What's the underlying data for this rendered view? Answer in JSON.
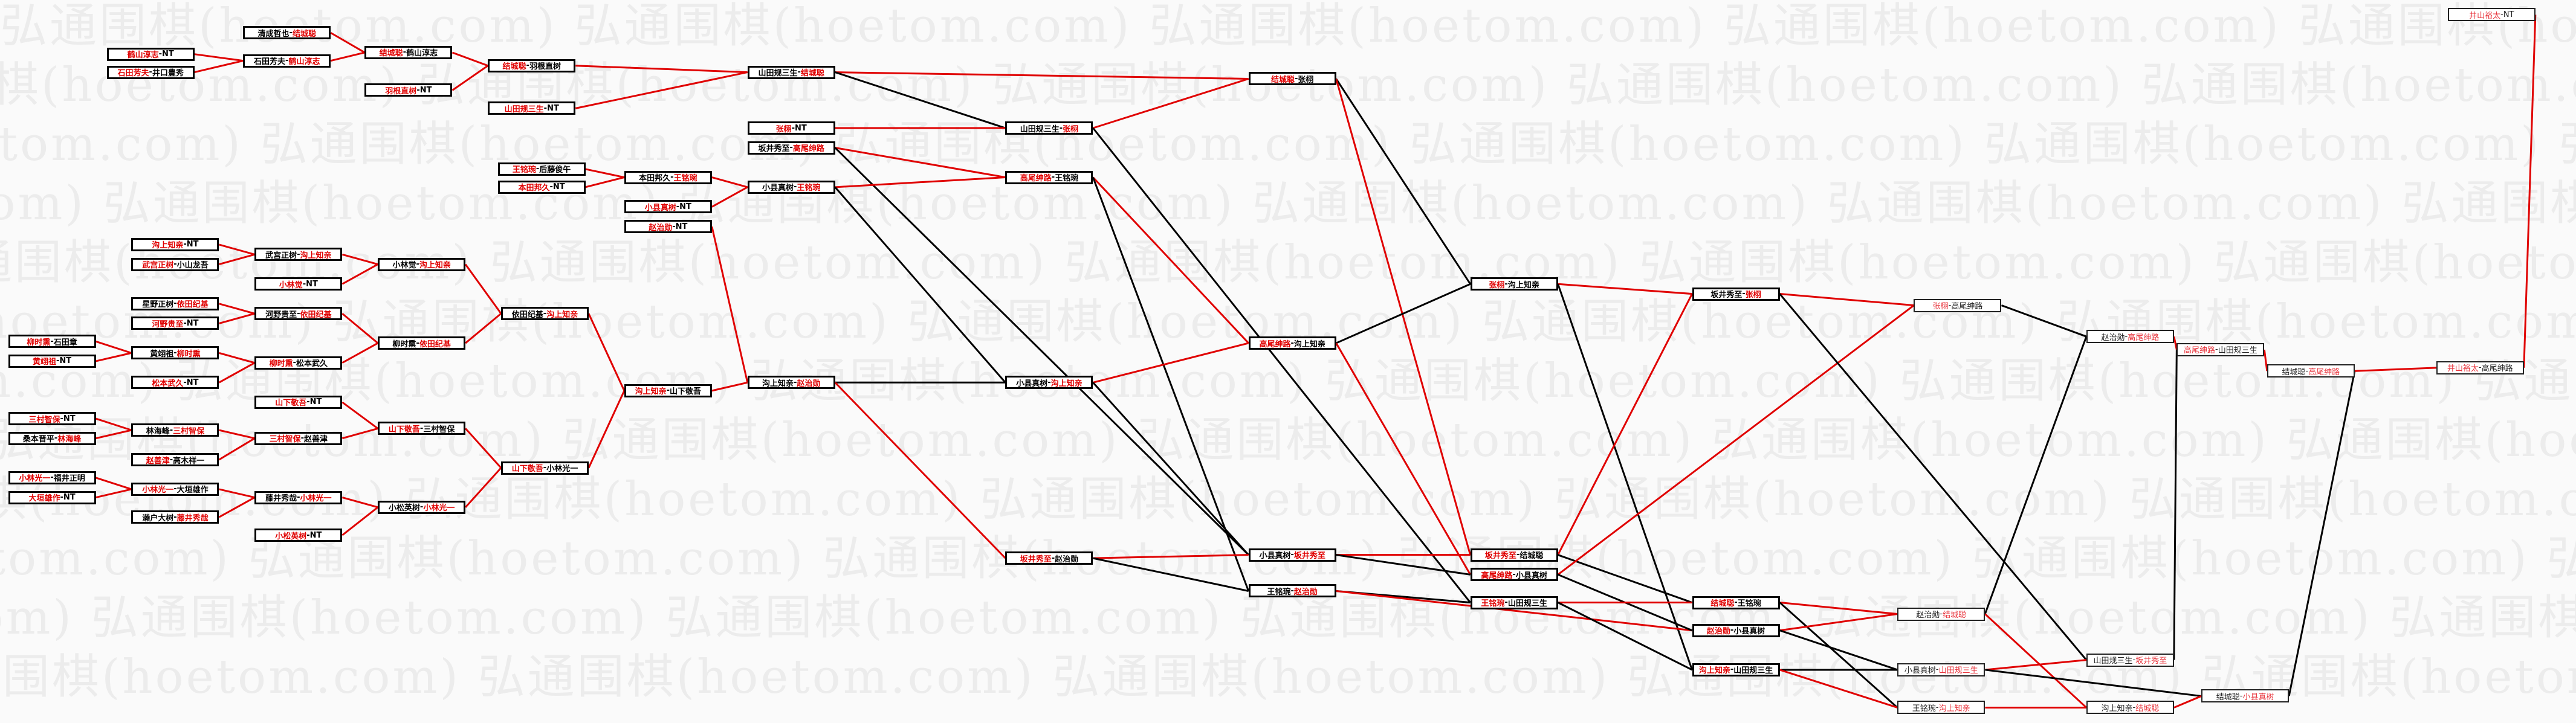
{
  "watermark": "弘通围棋(hoetom.com)",
  "colors": {
    "win": "#e00000",
    "lose": "#000000",
    "box_border": "#000000",
    "background": "#fafafa"
  },
  "matches": [
    {
      "id": "a1",
      "l": "鹤山淳志",
      "r": "NT",
      "red": "l"
    },
    {
      "id": "a2",
      "l": "石田芳夫",
      "r": "井口豊秀",
      "red": "l"
    },
    {
      "id": "a3",
      "l": "清成哲也",
      "r": "结城聪",
      "red": "r"
    },
    {
      "id": "a4",
      "l": "石田芳夫",
      "r": "鹤山淳志",
      "red": "r"
    },
    {
      "id": "a5",
      "l": "结城聪",
      "r": "鹤山淳志",
      "red": "l"
    },
    {
      "id": "a6",
      "l": "羽根直树",
      "r": "NT",
      "red": "l"
    },
    {
      "id": "a7",
      "l": "结城聪",
      "r": "羽根直树",
      "red": "l"
    },
    {
      "id": "a8",
      "l": "山田规三生",
      "r": "NT",
      "red": "l"
    },
    {
      "id": "a9",
      "l": "山田规三生",
      "r": "结城聪",
      "red": "r"
    },
    {
      "id": "b1",
      "l": "王铭琬",
      "r": "后藤俊午",
      "red": "l"
    },
    {
      "id": "b2",
      "l": "本田邦久",
      "r": "NT",
      "red": "l"
    },
    {
      "id": "b3",
      "l": "本田邦久",
      "r": "王铭琬",
      "red": "r"
    },
    {
      "id": "b4",
      "l": "小县真树",
      "r": "NT",
      "red": "l"
    },
    {
      "id": "b5",
      "l": "赵治勋",
      "r": "NT",
      "red": "l"
    },
    {
      "id": "b6",
      "l": "张栩",
      "r": "NT",
      "red": "l"
    },
    {
      "id": "b7",
      "l": "坂井秀至",
      "r": "高尾绅路",
      "red": "r"
    },
    {
      "id": "b8",
      "l": "小县真树",
      "r": "王铭琬",
      "red": "r"
    },
    {
      "id": "b9",
      "l": "山田规三生",
      "r": "张栩",
      "red": "r"
    },
    {
      "id": "b10",
      "l": "高尾绅路",
      "r": "王铭琬",
      "red": "l"
    },
    {
      "id": "b11",
      "l": "结城聪",
      "r": "张栩",
      "red": "l"
    },
    {
      "id": "c1",
      "l": "沟上知亲",
      "r": "NT",
      "red": "l"
    },
    {
      "id": "c2",
      "l": "武宫正树",
      "r": "小山龙吾",
      "red": "l"
    },
    {
      "id": "c3",
      "l": "武宫正树",
      "r": "沟上知亲",
      "red": "r"
    },
    {
      "id": "c4",
      "l": "小林觉",
      "r": "NT",
      "red": "l"
    },
    {
      "id": "c5",
      "l": "小林觉",
      "r": "沟上知亲",
      "red": "r"
    },
    {
      "id": "c6",
      "l": "星野正树",
      "r": "依田纪基",
      "red": "r"
    },
    {
      "id": "c7",
      "l": "河野贵至",
      "r": "NT",
      "red": "l"
    },
    {
      "id": "c8",
      "l": "河野贵至",
      "r": "依田纪基",
      "red": "r"
    },
    {
      "id": "c9",
      "l": "柳时熏",
      "r": "依田纪基",
      "red": "r"
    },
    {
      "id": "c10",
      "l": "依田纪基",
      "r": "沟上知亲",
      "red": "r"
    },
    {
      "id": "c11",
      "l": "柳时熏",
      "r": "石田章",
      "red": "l"
    },
    {
      "id": "c12",
      "l": "黄翊祖",
      "r": "NT",
      "red": "l"
    },
    {
      "id": "c13",
      "l": "黄翊祖",
      "r": "柳时熏",
      "red": "r"
    },
    {
      "id": "c14",
      "l": "柳时熏",
      "r": "松本武久",
      "red": "l"
    },
    {
      "id": "c15",
      "l": "松本武久",
      "r": "NT",
      "red": "l"
    },
    {
      "id": "c16",
      "l": "山下敬吾",
      "r": "NT",
      "red": "l"
    },
    {
      "id": "c17",
      "l": "三村智保",
      "r": "NT",
      "red": "l"
    },
    {
      "id": "c18",
      "l": "桑本晋平",
      "r": "林海峰",
      "red": "r"
    },
    {
      "id": "c19",
      "l": "林海峰",
      "r": "三村智保",
      "red": "r"
    },
    {
      "id": "c20",
      "l": "赵善津",
      "r": "高木祥一",
      "red": "l"
    },
    {
      "id": "c21",
      "l": "三村智保",
      "r": "赵善津",
      "red": "l"
    },
    {
      "id": "c22",
      "l": "山下敬吾",
      "r": "三村智保",
      "red": "l"
    },
    {
      "id": "c23",
      "l": "小林光一",
      "r": "福井正明",
      "red": "l"
    },
    {
      "id": "c24",
      "l": "大垣雄作",
      "r": "NT",
      "red": "l"
    },
    {
      "id": "c25",
      "l": "小林光一",
      "r": "大垣雄作",
      "red": "l"
    },
    {
      "id": "c26",
      "l": "濑户大树",
      "r": "藤井秀哉",
      "red": "r"
    },
    {
      "id": "c27",
      "l": "藤井秀哉",
      "r": "小林光一",
      "red": "r"
    },
    {
      "id": "c28",
      "l": "小松英树",
      "r": "NT",
      "red": "l"
    },
    {
      "id": "c29",
      "l": "小松英树",
      "r": "小林光一",
      "red": "r"
    },
    {
      "id": "c30",
      "l": "山下敬吾",
      "r": "小林光一",
      "red": "l"
    },
    {
      "id": "d1",
      "l": "沟上知亲",
      "r": "山下敬吾",
      "red": "l"
    },
    {
      "id": "d2",
      "l": "沟上知亲",
      "r": "赵治勋",
      "red": "r"
    },
    {
      "id": "d3",
      "l": "小县真树",
      "r": "沟上知亲",
      "red": "r"
    },
    {
      "id": "d4",
      "l": "高尾绅路",
      "r": "沟上知亲",
      "red": "l"
    },
    {
      "id": "d5",
      "l": "坂井秀至",
      "r": "赵治勋",
      "red": "l"
    },
    {
      "id": "d6",
      "l": "张栩",
      "r": "沟上知亲",
      "red": "l"
    },
    {
      "id": "d7",
      "l": "坂井秀至",
      "r": "张栩",
      "red": "r"
    },
    {
      "id": "d8",
      "l": "张栩",
      "r": "高尾绅路",
      "red": "l"
    },
    {
      "id": "d9",
      "l": "赵治勋",
      "r": "高尾绅路",
      "red": "r"
    },
    {
      "id": "d10",
      "l": "高尾绅路",
      "r": "山田规三生",
      "red": "l"
    },
    {
      "id": "d11",
      "l": "结城聪",
      "r": "高尾绅路",
      "red": "r"
    },
    {
      "id": "d12",
      "l": "井山裕太",
      "r": "高尾绅路",
      "red": "l"
    },
    {
      "id": "d13",
      "l": "井山裕太",
      "r": "NT",
      "red": "l"
    },
    {
      "id": "e1",
      "l": "小县真树",
      "r": "坂井秀至",
      "red": "r"
    },
    {
      "id": "e2",
      "l": "王铭琬",
      "r": "赵治勋",
      "red": "r"
    },
    {
      "id": "e3",
      "l": "坂井秀至",
      "r": "结城聪",
      "red": "l"
    },
    {
      "id": "e4",
      "l": "高尾绅路",
      "r": "小县真树",
      "red": "l"
    },
    {
      "id": "e5",
      "l": "王铭琬",
      "r": "山田规三生",
      "red": "l"
    },
    {
      "id": "e6",
      "l": "结城聪",
      "r": "王铭琬",
      "red": "l"
    },
    {
      "id": "e7",
      "l": "赵治勋",
      "r": "小县真树",
      "red": "l"
    },
    {
      "id": "e8",
      "l": "沟上知亲",
      "r": "山田规三生",
      "red": "l"
    },
    {
      "id": "e9",
      "l": "赵治勋",
      "r": "结城聪",
      "red": "r"
    },
    {
      "id": "e10",
      "l": "山田规三生",
      "r": "坂井秀至",
      "red": "r"
    },
    {
      "id": "e11",
      "l": "小县真树",
      "r": "山田规三生",
      "red": "r"
    },
    {
      "id": "e12",
      "l": "王铭琬",
      "r": "沟上知亲",
      "red": "r"
    },
    {
      "id": "e13",
      "l": "沟上知亲",
      "r": "结城聪",
      "red": "r"
    },
    {
      "id": "e14",
      "l": "结城聪",
      "r": "小县真树",
      "red": "r"
    }
  ],
  "edges": [
    [
      "a1",
      "a4",
      "win"
    ],
    [
      "a2",
      "a4",
      "win"
    ],
    [
      "a3",
      "a5",
      "win"
    ],
    [
      "a4",
      "a5",
      "win"
    ],
    [
      "a5",
      "a7",
      "win"
    ],
    [
      "a6",
      "a7",
      "win"
    ],
    [
      "a7",
      "a9",
      "win"
    ],
    [
      "a8",
      "a9",
      "win"
    ],
    [
      "a9",
      "b11",
      "win"
    ],
    [
      "a9",
      "b9",
      "lose"
    ],
    [
      "b6",
      "b9",
      "win"
    ],
    [
      "b9",
      "b11",
      "win"
    ],
    [
      "b7",
      "b10",
      "win"
    ],
    [
      "b7",
      "e1",
      "lose"
    ],
    [
      "b1",
      "b3",
      "win"
    ],
    [
      "b2",
      "b3",
      "win"
    ],
    [
      "b3",
      "b8",
      "win"
    ],
    [
      "b4",
      "b8",
      "win"
    ],
    [
      "b8",
      "b10",
      "win"
    ],
    [
      "b8",
      "d3",
      "lose"
    ],
    [
      "b5",
      "d2",
      "win"
    ],
    [
      "d1",
      "d2",
      "win"
    ],
    [
      "d2",
      "d3",
      "lose"
    ],
    [
      "d2",
      "d5",
      "win"
    ],
    [
      "b10",
      "d4",
      "win"
    ],
    [
      "b10",
      "e2",
      "lose"
    ],
    [
      "b9",
      "e5",
      "lose"
    ],
    [
      "d3",
      "d4",
      "win"
    ],
    [
      "d3",
      "e1",
      "lose"
    ],
    [
      "b11",
      "d6",
      "lose"
    ],
    [
      "b11",
      "e3",
      "win"
    ],
    [
      "d4",
      "d6",
      "lose"
    ],
    [
      "d4",
      "e4",
      "win"
    ],
    [
      "d6",
      "d7",
      "win"
    ],
    [
      "d6",
      "e8",
      "lose"
    ],
    [
      "d5",
      "e1",
      "win"
    ],
    [
      "d5",
      "e2",
      "lose"
    ],
    [
      "e1",
      "e3",
      "win"
    ],
    [
      "e1",
      "e4",
      "lose"
    ],
    [
      "e2",
      "e5",
      "lose"
    ],
    [
      "e2",
      "e7",
      "win"
    ],
    [
      "e3",
      "d7",
      "win"
    ],
    [
      "e3",
      "e6",
      "lose"
    ],
    [
      "e4",
      "d8",
      "win"
    ],
    [
      "e4",
      "e7",
      "lose"
    ],
    [
      "e5",
      "e6",
      "win"
    ],
    [
      "e5",
      "e8",
      "lose"
    ],
    [
      "e6",
      "e9",
      "win"
    ],
    [
      "e6",
      "e12",
      "lose"
    ],
    [
      "e7",
      "e9",
      "win"
    ],
    [
      "e7",
      "e11",
      "lose"
    ],
    [
      "e8",
      "e11",
      "lose"
    ],
    [
      "e8",
      "e12",
      "win"
    ],
    [
      "d7",
      "d8",
      "win"
    ],
    [
      "d7",
      "e10",
      "lose"
    ],
    [
      "d8",
      "d9",
      "lose"
    ],
    [
      "e9",
      "d9",
      "lose"
    ],
    [
      "e9",
      "e13",
      "win"
    ],
    [
      "d9",
      "d10",
      "win"
    ],
    [
      "e11",
      "e10",
      "win"
    ],
    [
      "e11",
      "e14",
      "lose"
    ],
    [
      "e12",
      "e13",
      "win"
    ],
    [
      "e10",
      "d10",
      "lose"
    ],
    [
      "d10",
      "d11",
      "win"
    ],
    [
      "e13",
      "e14",
      "win"
    ],
    [
      "e14",
      "d11",
      "lose"
    ],
    [
      "d11",
      "d12",
      "win"
    ],
    [
      "d13",
      "d12",
      "win"
    ],
    [
      "c1",
      "c3",
      "win"
    ],
    [
      "c2",
      "c3",
      "win"
    ],
    [
      "c3",
      "c5",
      "win"
    ],
    [
      "c4",
      "c5",
      "win"
    ],
    [
      "c5",
      "c10",
      "win"
    ],
    [
      "c6",
      "c8",
      "win"
    ],
    [
      "c7",
      "c8",
      "win"
    ],
    [
      "c8",
      "c9",
      "win"
    ],
    [
      "c11",
      "c13",
      "win"
    ],
    [
      "c12",
      "c13",
      "win"
    ],
    [
      "c13",
      "c14",
      "win"
    ],
    [
      "c15",
      "c14",
      "win"
    ],
    [
      "c14",
      "c9",
      "win"
    ],
    [
      "c9",
      "c10",
      "win"
    ],
    [
      "c10",
      "d1",
      "win"
    ],
    [
      "c16",
      "c22",
      "win"
    ],
    [
      "c17",
      "c19",
      "win"
    ],
    [
      "c18",
      "c19",
      "win"
    ],
    [
      "c19",
      "c21",
      "win"
    ],
    [
      "c20",
      "c21",
      "win"
    ],
    [
      "c21",
      "c22",
      "win"
    ],
    [
      "c23",
      "c25",
      "win"
    ],
    [
      "c24",
      "c25",
      "win"
    ],
    [
      "c25",
      "c27",
      "win"
    ],
    [
      "c26",
      "c27",
      "win"
    ],
    [
      "c27",
      "c29",
      "win"
    ],
    [
      "c28",
      "c29",
      "win"
    ],
    [
      "c22",
      "c30",
      "win"
    ],
    [
      "c29",
      "c30",
      "win"
    ],
    [
      "c30",
      "d1",
      "win"
    ]
  ]
}
